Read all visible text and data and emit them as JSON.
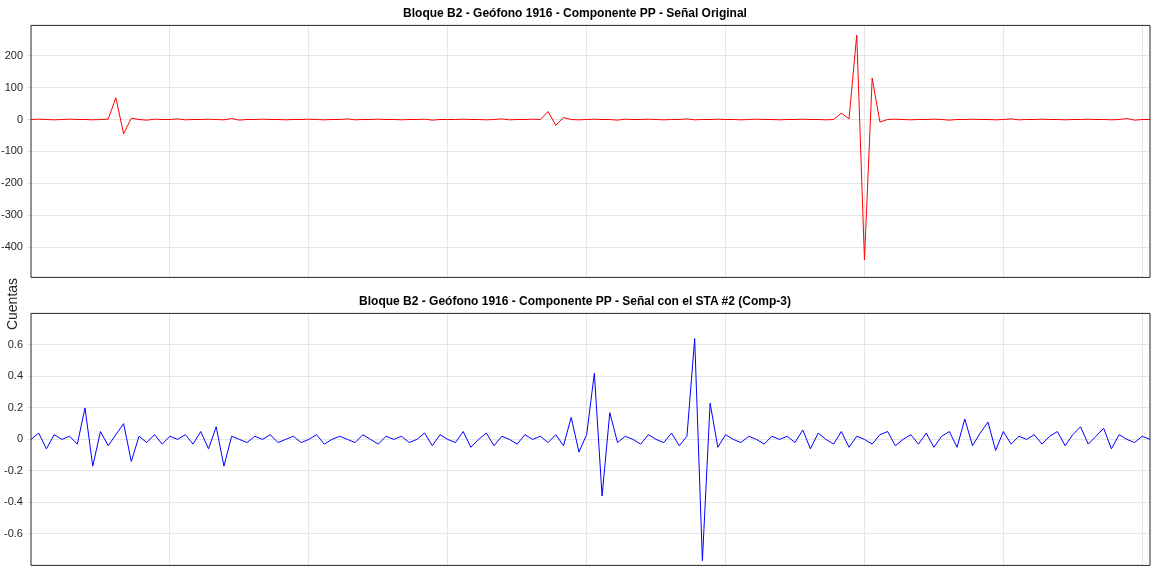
{
  "chart_data": [
    {
      "type": "line",
      "title": "Bloque B2 - Geófono 1916 - Componente PP - Señal Original",
      "ylabel": "Cuentas",
      "categories": [
        null,
        null,
        null,
        null,
        null,
        null,
        null,
        null,
        null,
        null,
        null,
        null,
        null,
        null,
        null,
        null,
        null,
        null,
        null,
        null,
        null,
        null,
        null,
        null,
        null,
        null,
        null,
        null,
        null,
        null,
        null,
        null,
        null,
        null,
        null,
        null,
        null,
        null,
        null,
        null,
        null,
        null,
        null,
        null,
        null,
        null,
        null,
        null,
        null,
        null,
        null,
        null,
        null,
        null,
        null,
        null,
        null,
        null,
        null,
        null,
        null,
        null,
        null,
        null,
        null,
        null,
        null,
        null,
        null,
        null,
        null,
        null,
        null,
        null,
        null,
        null,
        null,
        null,
        null,
        null,
        null,
        null,
        null,
        null,
        null,
        null,
        null,
        null,
        null,
        null,
        null,
        null,
        null,
        null,
        null,
        null,
        null,
        null,
        null,
        null,
        null,
        null,
        null,
        null,
        null,
        null,
        null,
        null,
        null,
        null,
        null,
        null,
        null,
        null,
        null,
        null,
        null,
        null,
        null,
        null,
        null,
        null,
        null,
        null,
        null,
        null,
        null,
        null,
        null,
        null,
        null,
        null,
        null,
        null,
        null,
        null,
        null,
        null,
        null,
        null,
        null,
        null,
        null,
        null,
        null,
        null
      ],
      "ylim": [
        -495,
        295
      ],
      "yticks": [
        -400,
        -300,
        -200,
        -100,
        0,
        100,
        200
      ],
      "grid": true,
      "legend": false,
      "marker": "none",
      "line_style": "solid",
      "tick_labels": "y",
      "series": [
        {
          "color": "#ff0000",
          "values": [
            0,
            1,
            0,
            -1,
            0,
            1,
            0,
            0,
            -1,
            0,
            1,
            68,
            -45,
            4,
            0,
            -2,
            1,
            0,
            0,
            2,
            -1,
            0,
            0,
            1,
            0,
            -1,
            3,
            -2,
            0,
            0,
            1,
            0,
            0,
            -1,
            0,
            0,
            1,
            0,
            -1,
            0,
            0,
            2,
            -1,
            0,
            0,
            1,
            0,
            0,
            -1,
            0,
            0,
            1,
            -2,
            0,
            0,
            0,
            1,
            0,
            0,
            -1,
            0,
            2,
            -1,
            0,
            0,
            1,
            0,
            25,
            -18,
            6,
            0,
            -1,
            0,
            1,
            0,
            0,
            -2,
            1,
            0,
            0,
            1,
            0,
            -1,
            0,
            0,
            2,
            -1,
            0,
            0,
            1,
            0,
            0,
            -1,
            0,
            1,
            0,
            0,
            -1,
            0,
            0,
            1,
            0,
            0,
            -1,
            0,
            20,
            2,
            265,
            -440,
            130,
            -8,
            0,
            1,
            0,
            -1,
            0,
            0,
            1,
            0,
            -2,
            0,
            0,
            1,
            0,
            0,
            -1,
            0,
            2,
            -1,
            0,
            0,
            1,
            0,
            0,
            -1,
            0,
            0,
            1,
            0,
            0,
            -1,
            0,
            3,
            -2,
            0,
            0
          ]
        }
      ]
    },
    {
      "type": "line",
      "title": "Bloque B2 - Geófono 1916 - Componente PP - Señal con el STA #2 (Comp-3)",
      "categories": [
        null,
        null,
        null,
        null,
        null,
        null,
        null,
        null,
        null,
        null,
        null,
        null,
        null,
        null,
        null,
        null,
        null,
        null,
        null,
        null,
        null,
        null,
        null,
        null,
        null,
        null,
        null,
        null,
        null,
        null,
        null,
        null,
        null,
        null,
        null,
        null,
        null,
        null,
        null,
        null,
        null,
        null,
        null,
        null,
        null,
        null,
        null,
        null,
        null,
        null,
        null,
        null,
        null,
        null,
        null,
        null,
        null,
        null,
        null,
        null,
        null,
        null,
        null,
        null,
        null,
        null,
        null,
        null,
        null,
        null,
        null,
        null,
        null,
        null,
        null,
        null,
        null,
        null,
        null,
        null,
        null,
        null,
        null,
        null,
        null,
        null,
        null,
        null,
        null,
        null,
        null,
        null,
        null,
        null,
        null,
        null,
        null,
        null,
        null,
        null,
        null,
        null,
        null,
        null,
        null,
        null,
        null,
        null,
        null,
        null,
        null,
        null,
        null,
        null,
        null,
        null,
        null,
        null,
        null,
        null,
        null,
        null,
        null,
        null,
        null,
        null,
        null,
        null,
        null,
        null,
        null,
        null,
        null,
        null,
        null,
        null,
        null,
        null,
        null,
        null,
        null,
        null,
        null,
        null,
        null,
        null
      ],
      "ylim": [
        -0.8,
        0.8
      ],
      "yticks": [
        -0.6,
        -0.4,
        -0.2,
        0,
        0.2,
        0.4,
        0.6
      ],
      "grid": true,
      "legend": false,
      "marker": "none",
      "line_style": "solid",
      "tick_labels": "y",
      "series": [
        {
          "color": "#0000ff",
          "values": [
            0,
            0.04,
            -0.06,
            0.03,
            0,
            0.02,
            -0.03,
            0.2,
            -0.17,
            0.05,
            -0.04,
            0.03,
            0.1,
            -0.14,
            0.02,
            -0.02,
            0.03,
            -0.03,
            0.02,
            0,
            0.03,
            -0.03,
            0.05,
            -0.06,
            0.08,
            -0.17,
            0.02,
            0,
            -0.02,
            0.02,
            0,
            0.03,
            -0.02,
            0,
            0.02,
            -0.02,
            0,
            0.03,
            -0.03,
            0,
            0.02,
            0,
            -0.02,
            0.03,
            0,
            -0.03,
            0.02,
            0,
            0.02,
            -0.02,
            0,
            0.04,
            -0.04,
            0.03,
            0,
            -0.02,
            0.05,
            -0.05,
            0,
            0.04,
            -0.04,
            0.02,
            0,
            -0.03,
            0.03,
            0,
            0.02,
            -0.02,
            0.03,
            -0.04,
            0.14,
            -0.08,
            0.03,
            0.42,
            -0.36,
            0.17,
            -0.02,
            0.02,
            0,
            -0.03,
            0.03,
            0,
            -0.02,
            0.04,
            -0.04,
            0.02,
            0.64,
            -0.77,
            0.23,
            -0.05,
            0.03,
            0,
            -0.02,
            0.02,
            0,
            -0.03,
            0.02,
            0,
            0.02,
            -0.02,
            0.06,
            -0.06,
            0.04,
            0,
            -0.03,
            0.05,
            -0.05,
            0.02,
            0,
            -0.03,
            0.03,
            0.05,
            -0.04,
            0,
            0.03,
            -0.03,
            0.04,
            -0.05,
            0.02,
            0.05,
            -0.05,
            0.13,
            -0.04,
            0.04,
            0.11,
            -0.07,
            0.05,
            -0.03,
            0.02,
            0,
            0.03,
            -0.03,
            0.02,
            0.05,
            -0.04,
            0.03,
            0.08,
            -0.03,
            0.02,
            0.07,
            -0.06,
            0.03,
            0,
            -0.02,
            0.02,
            0
          ]
        }
      ]
    }
  ]
}
